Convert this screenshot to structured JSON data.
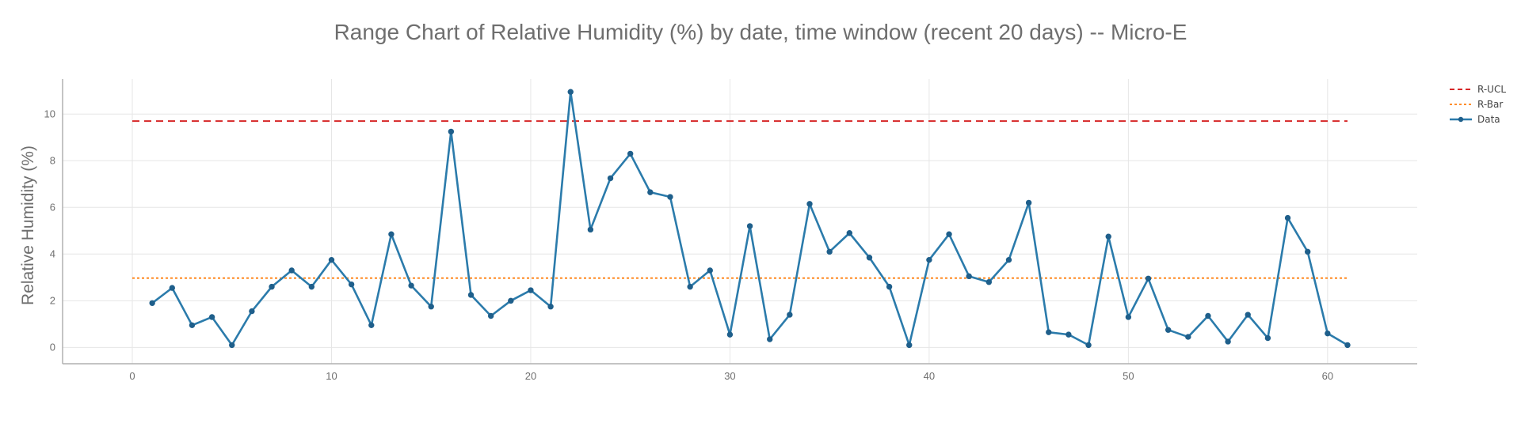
{
  "chart_data": {
    "type": "line",
    "title": "Range Chart of Relative Humidity (%) by date, time window (recent 20 days) -- Micro-E",
    "xlabel": "",
    "ylabel": "Relative Humidity (%)",
    "xlim": [
      -3.5,
      64.5
    ],
    "ylim": [
      -0.7,
      11.5
    ],
    "x_ticks": [
      0,
      10,
      20,
      30,
      40,
      50,
      60
    ],
    "y_ticks": [
      0,
      2,
      4,
      6,
      8,
      10
    ],
    "grid": true,
    "legend_position": "top-right",
    "legend": [
      "R-UCL",
      "R-Bar",
      "Data"
    ],
    "series": [
      {
        "name": "R-UCL",
        "style": "dashed",
        "color": "#d62728",
        "x": [
          0,
          61
        ],
        "y": [
          9.7,
          9.7
        ]
      },
      {
        "name": "R-Bar",
        "style": "dotted",
        "color": "#ff7f0e",
        "x": [
          0,
          61
        ],
        "y": [
          2.97,
          2.97
        ]
      },
      {
        "name": "Data",
        "style": "line-markers",
        "color": "#2b7bab",
        "marker_color": "#1f5f8b",
        "x": [
          1,
          2,
          3,
          4,
          5,
          6,
          7,
          8,
          9,
          10,
          11,
          12,
          13,
          14,
          15,
          16,
          17,
          18,
          19,
          20,
          21,
          22,
          23,
          24,
          25,
          26,
          27,
          28,
          29,
          30,
          31,
          32,
          33,
          34,
          35,
          36,
          37,
          38,
          39,
          40,
          41,
          42,
          43,
          44,
          45,
          46,
          47,
          48,
          49,
          50,
          51,
          52,
          53,
          54,
          55,
          56,
          57,
          58,
          59,
          60,
          61
        ],
        "y": [
          1.9,
          2.55,
          0.95,
          1.3,
          0.1,
          1.55,
          2.6,
          3.3,
          2.6,
          3.75,
          2.7,
          0.95,
          4.85,
          2.65,
          1.75,
          9.25,
          2.25,
          1.35,
          2.0,
          2.45,
          1.75,
          10.95,
          5.05,
          7.25,
          8.3,
          6.65,
          6.45,
          2.6,
          3.3,
          0.55,
          5.2,
          0.35,
          1.4,
          6.15,
          4.1,
          4.9,
          3.85,
          2.6,
          0.1,
          3.75,
          4.85,
          3.05,
          2.8,
          3.75,
          6.2,
          0.65,
          0.55,
          0.1,
          4.75,
          1.3,
          2.95,
          0.75,
          0.45,
          1.35,
          0.25,
          1.4,
          0.4,
          5.55,
          4.1,
          0.6,
          0.1
        ]
      }
    ]
  }
}
